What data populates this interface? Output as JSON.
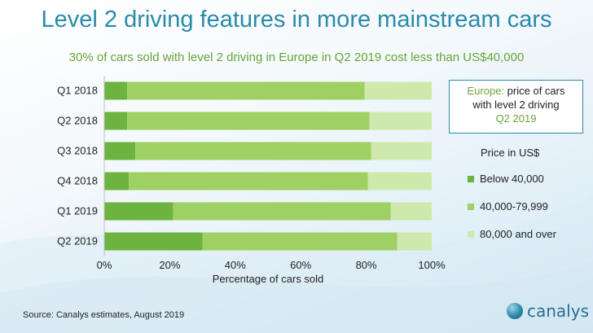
{
  "title": "Level 2 driving features in more mainstream cars",
  "subtitle": "30% of cars sold with level 2 driving in Europe in Q2 2019 cost less than US$40,000",
  "infobox": {
    "line1_highlight": "Europe:",
    "line1_rest": " price of cars",
    "line2": "with level  2 driving",
    "line3": "Q2 2019"
  },
  "legend": {
    "title": "Price in US$",
    "items": [
      {
        "label": "Below 40,000",
        "color": "#6cb33f"
      },
      {
        "label": "40,000-79,999",
        "color": "#9fd064"
      },
      {
        "label": "80,000 and over",
        "color": "#cfe9ad"
      }
    ]
  },
  "source": "Source:  Canalys estimates, August 2019",
  "logo_text": "canalys",
  "chart_data": {
    "type": "bar",
    "orientation": "horizontal",
    "stacked": true,
    "categories": [
      "Q1 2018",
      "Q2 2018",
      "Q3 2018",
      "Q4 2018",
      "Q1 2019",
      "Q2 2019"
    ],
    "series": [
      {
        "name": "Below 40,000",
        "color": "#6cb33f",
        "values": [
          7,
          7,
          9.5,
          7.5,
          21,
          30
        ]
      },
      {
        "name": "40,000-79,999",
        "color": "#9fd064",
        "values": [
          72.5,
          74,
          72,
          73,
          66.5,
          59.5
        ]
      },
      {
        "name": "80,000 and over",
        "color": "#cfe9ad",
        "values": [
          20.5,
          19,
          18.5,
          19.5,
          12.5,
          10.5
        ]
      }
    ],
    "xlim": [
      0,
      100
    ],
    "x_ticks": [
      "0%",
      "20%",
      "40%",
      "60%",
      "80%",
      "100%"
    ],
    "xlabel": "Percentage of cars sold",
    "ylabel": "",
    "grid": false,
    "legend_position": "right"
  }
}
